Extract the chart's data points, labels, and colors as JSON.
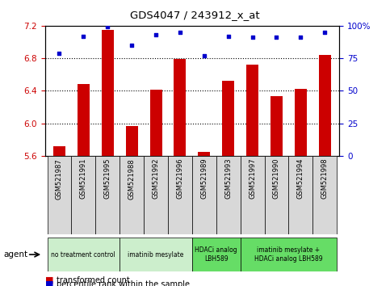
{
  "title": "GDS4047 / 243912_x_at",
  "samples": [
    "GSM521987",
    "GSM521991",
    "GSM521995",
    "GSM521988",
    "GSM521992",
    "GSM521996",
    "GSM521989",
    "GSM521993",
    "GSM521997",
    "GSM521990",
    "GSM521994",
    "GSM521998"
  ],
  "bar_values": [
    5.72,
    6.48,
    7.15,
    5.97,
    6.41,
    6.79,
    5.65,
    6.52,
    6.72,
    6.33,
    6.42,
    6.84
  ],
  "scatter_values": [
    79,
    92,
    99,
    85,
    93,
    95,
    77,
    92,
    91,
    91,
    91,
    95
  ],
  "bar_color": "#cc0000",
  "scatter_color": "#0000cc",
  "ylim_left": [
    5.6,
    7.2
  ],
  "ylim_right": [
    0,
    100
  ],
  "yticks_left": [
    5.6,
    6.0,
    6.4,
    6.8,
    7.2
  ],
  "yticks_right": [
    0,
    25,
    50,
    75,
    100
  ],
  "ytick_labels_right": [
    "0",
    "25",
    "50",
    "75",
    "100%"
  ],
  "groups": [
    {
      "label": "no treatment control",
      "start": 0,
      "end": 3,
      "color": "#cceecc"
    },
    {
      "label": "imatinib mesylate",
      "start": 3,
      "end": 6,
      "color": "#cceecc"
    },
    {
      "label": "HDACi analog\nLBH589",
      "start": 6,
      "end": 8,
      "color": "#66dd66"
    },
    {
      "label": "imatinib mesylate +\nHDACi analog LBH589",
      "start": 8,
      "end": 12,
      "color": "#66dd66"
    }
  ],
  "legend_bar_label": "transformed count",
  "legend_scatter_label": "percentile rank within the sample",
  "agent_label": "agent",
  "left_axis_color": "#cc0000",
  "right_axis_color": "#0000cc",
  "sample_box_color": "#d8d8d8",
  "bar_width": 0.5
}
